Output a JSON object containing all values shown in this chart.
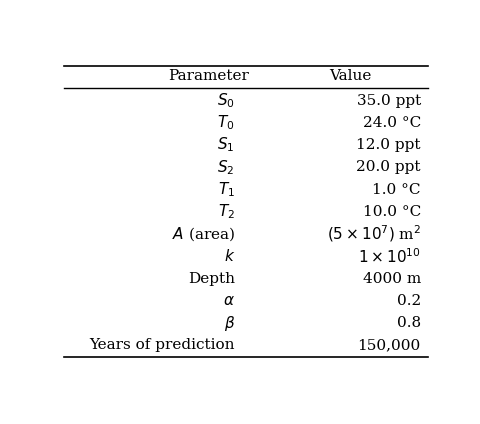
{
  "col_headers": [
    "Parameter",
    "Value"
  ],
  "rows": [
    [
      "$S_0$",
      "35.0 ppt"
    ],
    [
      "$T_0$",
      "24.0 °C"
    ],
    [
      "$S_1$",
      "12.0 ppt"
    ],
    [
      "$S_2$",
      "20.0 ppt"
    ],
    [
      "$T_1$",
      "1.0 °C"
    ],
    [
      "$T_2$",
      "10.0 °C"
    ],
    [
      "$A$ (area)",
      "$(5 \\times 10^7)$ m$^2$"
    ],
    [
      "$k$",
      "$1 \\times 10^{10}$"
    ],
    [
      "Depth",
      "4000 m"
    ],
    [
      "$\\alpha$",
      "0.2"
    ],
    [
      "$\\beta$",
      "0.8"
    ],
    [
      "Years of prediction",
      "150,000"
    ]
  ],
  "background_color": "#ffffff",
  "text_color": "#000000",
  "fontsize": 11,
  "header_fontsize": 11
}
